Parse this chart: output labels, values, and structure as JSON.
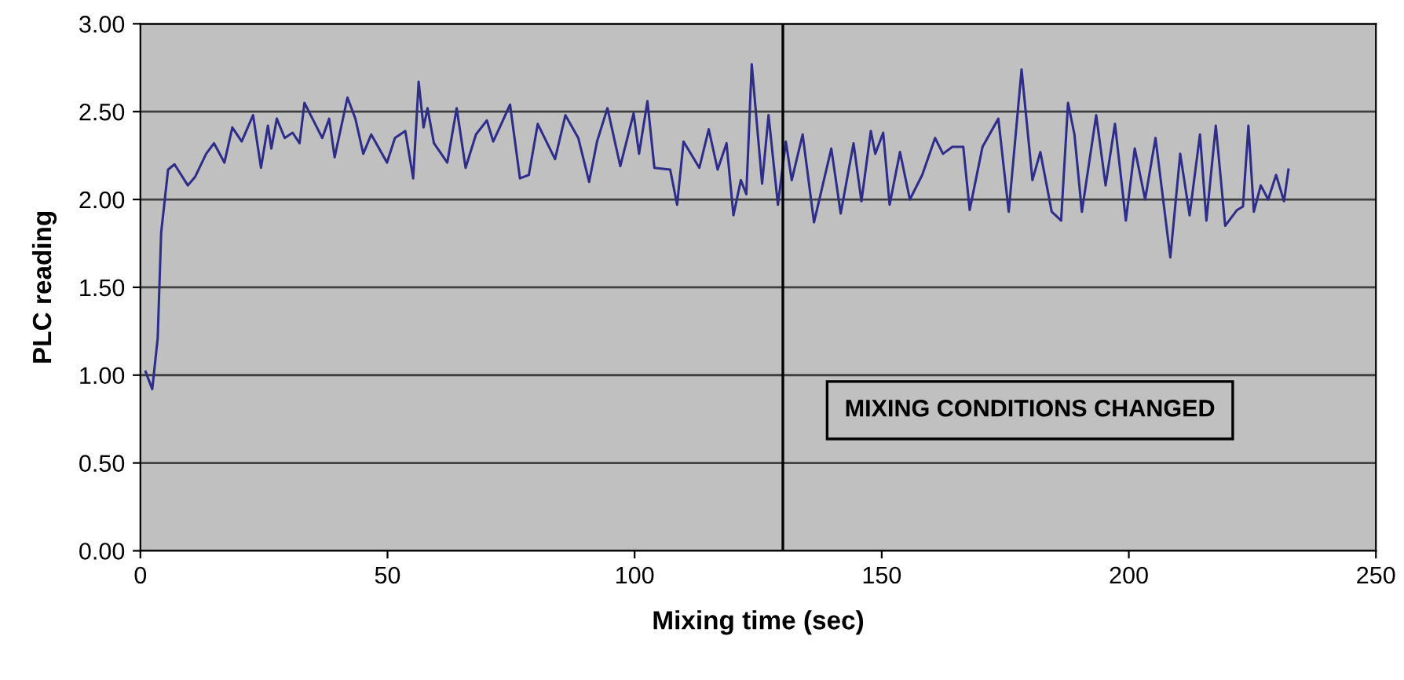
{
  "chart_data": {
    "type": "line",
    "xlabel": "Mixing time (sec)",
    "ylabel": "PLC reading",
    "annotations": [
      "MIXING CONDITIONS CHANGED"
    ],
    "ref_lines": [
      {
        "axis": "x",
        "value": 130,
        "color": "#000000"
      }
    ],
    "xlim": [
      0,
      250
    ],
    "xticks": [
      0,
      50,
      100,
      150,
      200,
      250
    ],
    "ylim": [
      0,
      3
    ],
    "yticks": [
      {
        "value": 0,
        "label": "0.00"
      },
      {
        "value": 0.5,
        "label": "0.50"
      },
      {
        "value": 1,
        "label": "1.00"
      },
      {
        "value": 1.5,
        "label": "1.50"
      },
      {
        "value": 2,
        "label": "2.00"
      },
      {
        "value": 2.5,
        "label": "2.50"
      },
      {
        "value": 3,
        "label": "3.00"
      }
    ],
    "grid": "y",
    "legend": false,
    "marker": "none",
    "line_style": "solid",
    "series": [
      {
        "color": "#2e2e8a",
        "x": [
          1.05,
          2.4,
          3.5,
          4.2,
          5.6,
          6.9,
          9.6,
          11.1,
          13.3,
          14.9,
          17,
          18.6,
          20.5,
          22.8,
          24.4,
          25.8,
          26.5,
          27.6,
          29.2,
          30.8,
          32.2,
          33.2,
          35,
          36.8,
          38.2,
          39.3,
          41.9,
          43.5,
          45.1,
          46.7,
          49.9,
          51.5,
          53.6,
          55.2,
          56.3,
          57.3,
          58.1,
          59.4,
          62.1,
          64,
          65.8,
          67.9,
          70.1,
          71.4,
          72.7,
          74.8,
          76.8,
          78.6,
          80.4,
          83.9,
          86,
          88.6,
          90.8,
          92.4,
          94.5,
          97.1,
          99.8,
          100.9,
          102.6,
          104,
          107.2,
          108.6,
          109.9,
          113.1,
          115,
          116.8,
          118.6,
          120,
          121.5,
          122.6,
          123.7,
          125.8,
          127.1,
          129,
          130.6,
          131.8,
          134,
          136.3,
          139.8,
          141.7,
          144.3,
          145.9,
          147.8,
          148.7,
          150.3,
          151.6,
          153.7,
          155.7,
          158.2,
          160.8,
          162.4,
          164.3,
          166.5,
          167.8,
          170.4,
          173.6,
          175.7,
          178.3,
          180.5,
          182.1,
          184.4,
          186.3,
          187.7,
          189,
          190.5,
          193.4,
          195.3,
          197.2,
          199.4,
          201.2,
          203.3,
          205.4,
          208.4,
          210.4,
          212.3,
          214.4,
          215.7,
          217.6,
          219.5,
          221.9,
          223.1,
          224.2,
          225.3,
          226.7,
          228.2,
          229.8,
          231.4,
          232.3
        ],
        "values": [
          1.02,
          0.92,
          1.21,
          1.81,
          2.17,
          2.2,
          2.08,
          2.13,
          2.26,
          2.32,
          2.21,
          2.41,
          2.33,
          2.48,
          2.18,
          2.42,
          2.29,
          2.46,
          2.35,
          2.38,
          2.32,
          2.55,
          2.45,
          2.35,
          2.46,
          2.24,
          2.58,
          2.46,
          2.26,
          2.37,
          2.21,
          2.35,
          2.39,
          2.12,
          2.67,
          2.41,
          2.52,
          2.32,
          2.21,
          2.52,
          2.18,
          2.37,
          2.45,
          2.33,
          2.41,
          2.54,
          2.12,
          2.14,
          2.43,
          2.23,
          2.48,
          2.35,
          2.1,
          2.33,
          2.52,
          2.19,
          2.49,
          2.26,
          2.56,
          2.18,
          2.17,
          1.97,
          2.33,
          2.18,
          2.4,
          2.17,
          2.32,
          1.91,
          2.11,
          2.03,
          2.77,
          2.09,
          2.48,
          1.97,
          2.33,
          2.11,
          2.37,
          1.87,
          2.29,
          1.92,
          2.32,
          1.99,
          2.39,
          2.26,
          2.38,
          1.97,
          2.27,
          2.0,
          2.14,
          2.35,
          2.26,
          2.3,
          2.3,
          1.94,
          2.3,
          2.46,
          1.93,
          2.74,
          2.11,
          2.27,
          1.93,
          1.88,
          2.55,
          2.37,
          1.93,
          2.48,
          2.08,
          2.43,
          1.88,
          2.29,
          2.0,
          2.35,
          1.67,
          2.26,
          1.91,
          2.37,
          1.88,
          2.42,
          1.85,
          1.94,
          1.96,
          2.42,
          1.93,
          2.08,
          2.0,
          2.14,
          1.99,
          2.17
        ]
      }
    ]
  }
}
